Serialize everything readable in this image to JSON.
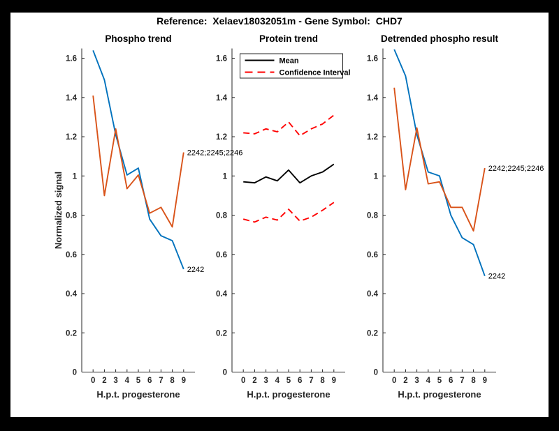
{
  "figure": {
    "title": "Reference:  Xelaev18032051m - Gene Symbol:  CHD7",
    "background_color": "#000000",
    "panel_color": "#ffffff"
  },
  "colors": {
    "blue": "#0072BD",
    "orange": "#D95319",
    "red": "#FF0000",
    "black": "#000000",
    "axis": "#262626"
  },
  "axes": {
    "xlabel": "H.p.t. progesterone",
    "ylabel": "Normalized signal",
    "x_tick_labels": [
      "0",
      "2",
      "3",
      "4",
      "5",
      "6",
      "7",
      "8",
      "9"
    ],
    "y_tick_labels": [
      "0",
      "0.2",
      "0.4",
      "0.6",
      "0.8",
      "1",
      "1.2",
      "1.4",
      "1.6"
    ],
    "y_tick_values": [
      0,
      0.2,
      0.4,
      0.6,
      0.8,
      1,
      1.2,
      1.4,
      1.6
    ],
    "ylim": [
      0,
      1.65
    ],
    "grid": false
  },
  "chart_data": [
    {
      "type": "line",
      "title": "Phospho trend",
      "xlabel": "H.p.t. progesterone",
      "ylabel": "Normalized signal",
      "x_labels": [
        "0",
        "2",
        "3",
        "4",
        "5",
        "6",
        "7",
        "8",
        "9"
      ],
      "ylim": [
        0,
        1.65
      ],
      "series": [
        {
          "name": "2242",
          "color": "#0072BD",
          "style": "solid",
          "values": [
            1.64,
            1.49,
            1.21,
            1.005,
            1.04,
            0.78,
            0.695,
            0.67,
            0.525
          ],
          "end_label": "2242"
        },
        {
          "name": "2242;2245;2246",
          "color": "#D95319",
          "style": "solid",
          "values": [
            1.41,
            0.9,
            1.24,
            0.935,
            1.005,
            0.81,
            0.84,
            0.74,
            1.12
          ],
          "end_label": "2242;2245;2246"
        }
      ]
    },
    {
      "type": "line",
      "title": "Protein trend",
      "xlabel": "H.p.t. progesterone",
      "x_labels": [
        "0",
        "2",
        "3",
        "4",
        "5",
        "6",
        "7",
        "8",
        "9"
      ],
      "ylim": [
        0,
        1.65
      ],
      "legend": {
        "position": "northwest",
        "entries": [
          {
            "label": "Mean",
            "color": "#000000",
            "style": "solid"
          },
          {
            "label": "Confidence Interval",
            "color": "#FF0000",
            "style": "dashed"
          }
        ]
      },
      "series": [
        {
          "name": "Confidence Interval (upper)",
          "color": "#FF0000",
          "style": "dashed",
          "values": [
            1.22,
            1.215,
            1.24,
            1.225,
            1.275,
            1.205,
            1.24,
            1.265,
            1.31
          ]
        },
        {
          "name": "Mean",
          "color": "#000000",
          "style": "solid",
          "values": [
            0.97,
            0.965,
            0.995,
            0.975,
            1.03,
            0.965,
            1.0,
            1.02,
            1.06
          ]
        },
        {
          "name": "Confidence Interval (lower)",
          "color": "#FF0000",
          "style": "dashed",
          "values": [
            0.78,
            0.765,
            0.79,
            0.775,
            0.83,
            0.77,
            0.79,
            0.825,
            0.865
          ]
        }
      ]
    },
    {
      "type": "line",
      "title": "Detrended phospho result",
      "xlabel": "H.p.t. progesterone",
      "x_labels": [
        "0",
        "2",
        "3",
        "4",
        "5",
        "6",
        "7",
        "8",
        "9"
      ],
      "ylim": [
        0,
        1.65
      ],
      "series": [
        {
          "name": "2242",
          "color": "#0072BD",
          "style": "solid",
          "values": [
            1.645,
            1.51,
            1.21,
            1.02,
            1.0,
            0.8,
            0.685,
            0.65,
            0.49
          ],
          "end_label": "2242"
        },
        {
          "name": "2242;2245;2246",
          "color": "#D95319",
          "style": "solid",
          "values": [
            1.45,
            0.93,
            1.245,
            0.96,
            0.97,
            0.84,
            0.84,
            0.72,
            1.04
          ],
          "end_label": "2242;2245;2246"
        }
      ]
    }
  ]
}
